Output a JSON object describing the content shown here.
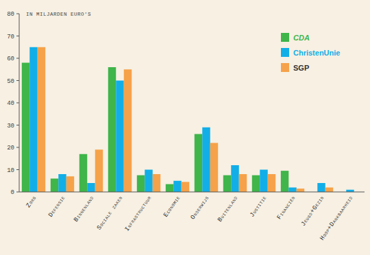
{
  "chart_data": {
    "type": "bar",
    "y_label": "IN MILJARDEN EURO'S",
    "categories": [
      "Zorg",
      "Defensie",
      "Binnenland",
      "Sociale zaken",
      "Infrastructuur",
      "Economie",
      "Onderwijs",
      "Buitenland",
      "Justitie",
      "Financiën",
      "Jeugd+Gezin",
      "Hoop+Dankbaarheid"
    ],
    "series": [
      {
        "name": "CDA",
        "color": "#3fb54a",
        "values": [
          58,
          6,
          17,
          56,
          7.5,
          3.5,
          26,
          7.5,
          7.5,
          9.5,
          0,
          0
        ]
      },
      {
        "name": "ChristenUnie",
        "color": "#12aee8",
        "values": [
          65,
          8,
          4,
          50,
          10,
          5,
          29,
          12,
          10,
          2,
          4,
          1
        ]
      },
      {
        "name": "SGP",
        "color": "#f6a24a",
        "values": [
          65,
          7,
          19,
          55,
          8,
          4.5,
          22,
          8,
          8,
          1.5,
          2,
          0
        ]
      }
    ],
    "ylim": [
      0,
      80
    ],
    "yticks": [
      0,
      10,
      20,
      30,
      40,
      50,
      60,
      70,
      80
    ],
    "grid": false,
    "legend": "upper right"
  }
}
